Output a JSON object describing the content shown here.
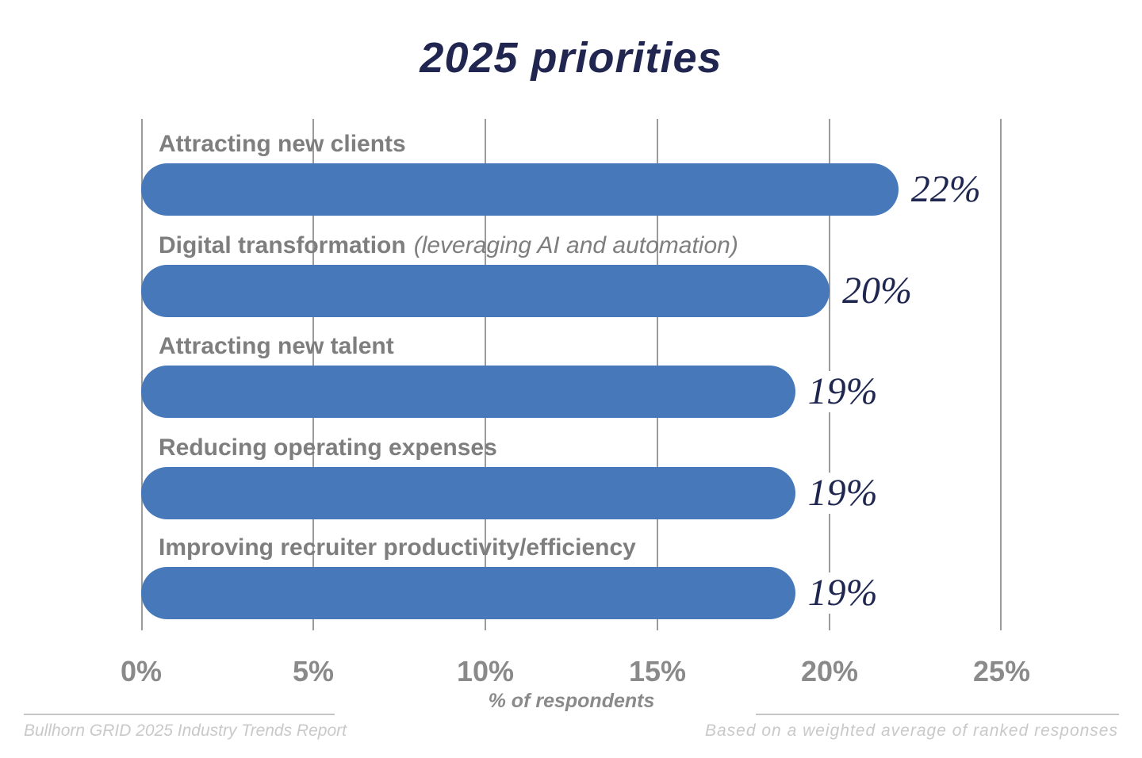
{
  "chart_data": {
    "type": "bar",
    "orientation": "horizontal",
    "title": "2025 priorities",
    "categories": [
      "Attracting new clients",
      "Digital transformation (leveraging AI and automation)",
      "Attracting new talent",
      "Reducing operating expenses",
      "Improving recruiter productivity/efficiency"
    ],
    "values": [
      22,
      20,
      19,
      19,
      19
    ],
    "rows": [
      {
        "label": "Attracting new clients",
        "note": "",
        "value_label": "22%"
      },
      {
        "label": "Digital transformation",
        "note": "(leveraging AI and automation)",
        "value_label": "20%"
      },
      {
        "label": "Attracting new talent",
        "note": "",
        "value_label": "19%"
      },
      {
        "label": "Reducing operating expenses",
        "note": "",
        "value_label": "19%"
      },
      {
        "label": "Improving recruiter productivity/efficiency",
        "note": "",
        "value_label": "19%"
      }
    ],
    "xlabel": "% of respondents",
    "x_ticks": [
      "0%",
      "5%",
      "10%",
      "15%",
      "20%",
      "25%"
    ],
    "xlim": [
      0,
      25
    ],
    "grid": true,
    "legend": "none"
  },
  "footer": {
    "left": "Bullhorn GRID 2025 Industry Trends Report",
    "right": "Based on a weighted average of ranked responses"
  },
  "colors": {
    "bar": "#4678ba",
    "title_navy": "#20264f",
    "value_navy": "#1f2750",
    "label_gray": "#7e7e7e",
    "tick_gray": "#8a8a8a",
    "gridline": "#9b9b9b",
    "footer_text": "#c9c9c9",
    "divider": "#c6c6c6"
  }
}
